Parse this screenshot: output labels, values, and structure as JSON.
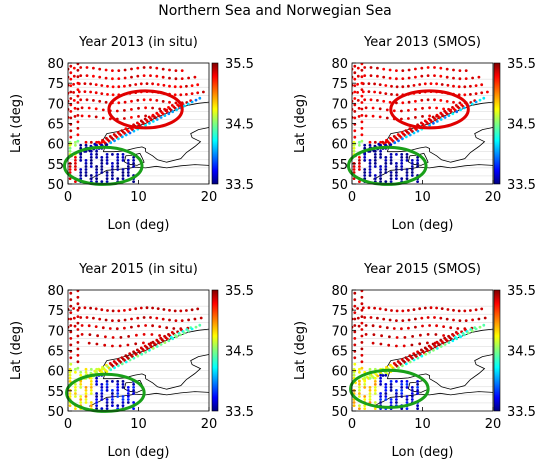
{
  "figure": {
    "suptitle": "Northern Sea and Norwegian Sea"
  },
  "chart_data": [
    {
      "type": "scatter",
      "title": "Year 2013 (in situ)",
      "xlabel": "Lon (deg)",
      "ylabel": "Lat (deg)",
      "xlim": [
        0,
        20
      ],
      "ylim": [
        50,
        80
      ],
      "xticks": [
        "0",
        "10",
        "20"
      ],
      "yticks": [
        "50",
        "55",
        "60",
        "65",
        "70",
        "75",
        "80"
      ],
      "colorbar": {
        "min": 33.5,
        "max": 35.5,
        "ticks": [
          "33.5",
          "34.5",
          "35.5"
        ]
      },
      "salinity_pattern": "2013",
      "circles": [
        {
          "color": "#e00000",
          "cx": 11,
          "cy": 68.5,
          "rx": 5.2,
          "ry": 4.6
        },
        {
          "color": "#19a019",
          "cx": 5,
          "cy": 54.5,
          "rx": 5.5,
          "ry": 4.6
        }
      ]
    },
    {
      "type": "scatter",
      "title": "Year 2013 (SMOS)",
      "xlabel": "Lon (deg)",
      "ylabel": "Lat (deg)",
      "xlim": [
        0,
        20
      ],
      "ylim": [
        50,
        80
      ],
      "xticks": [
        "0",
        "10",
        "20"
      ],
      "yticks": [
        "50",
        "55",
        "60",
        "65",
        "70",
        "75",
        "80"
      ],
      "colorbar": {
        "min": 33.5,
        "max": 35.5,
        "ticks": [
          "33.5",
          "34.5",
          "35.5"
        ]
      },
      "salinity_pattern": "2013",
      "circles": [
        {
          "color": "#e00000",
          "cx": 11,
          "cy": 68.5,
          "rx": 5.5,
          "ry": 4.6
        },
        {
          "color": "#19a019",
          "cx": 5,
          "cy": 54.5,
          "rx": 5.5,
          "ry": 4.6
        }
      ]
    },
    {
      "type": "scatter",
      "title": "Year 2015 (in situ)",
      "xlabel": "Lon (deg)",
      "ylabel": "Lat (deg)",
      "xlim": [
        0,
        20
      ],
      "ylim": [
        50,
        80
      ],
      "xticks": [
        "0",
        "10",
        "20"
      ],
      "yticks": [
        "50",
        "55",
        "60",
        "65",
        "70",
        "75",
        "80"
      ],
      "colorbar": {
        "min": 33.5,
        "max": 35.5,
        "ticks": [
          "33.5",
          "34.5",
          "35.5"
        ]
      },
      "salinity_pattern": "2015",
      "circles": [
        {
          "color": "#19a019",
          "cx": 5.3,
          "cy": 54.5,
          "rx": 5.5,
          "ry": 4.6
        }
      ]
    },
    {
      "type": "scatter",
      "title": "Year 2015 (SMOS)",
      "xlabel": "Lon (deg)",
      "ylabel": "Lat (deg)",
      "xlim": [
        0,
        20
      ],
      "ylim": [
        50,
        80
      ],
      "xticks": [
        "0",
        "10",
        "20"
      ],
      "yticks": [
        "50",
        "55",
        "60",
        "65",
        "70",
        "75",
        "80"
      ],
      "colorbar": {
        "min": 33.5,
        "max": 35.5,
        "ticks": [
          "33.5",
          "34.5",
          "35.5"
        ]
      },
      "salinity_pattern": "2015",
      "circles": [
        {
          "color": "#19a019",
          "cx": 5.3,
          "cy": 55.5,
          "rx": 5.5,
          "ry": 4.6
        }
      ]
    }
  ]
}
